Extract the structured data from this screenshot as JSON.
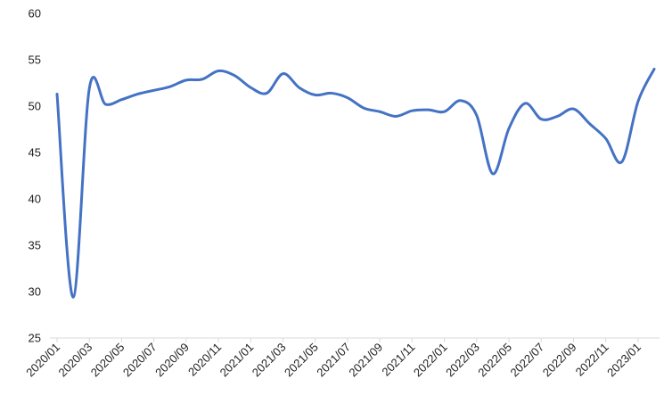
{
  "chart_data": {
    "type": "line",
    "title": "",
    "xlabel": "",
    "ylabel": "",
    "ylim": [
      25,
      60
    ],
    "y_ticks": [
      25,
      30,
      35,
      40,
      45,
      50,
      55,
      60
    ],
    "y_tick_labels": [
      "25",
      "30",
      "35",
      "40",
      "45",
      "50",
      "55",
      "60"
    ],
    "grid": false,
    "legend": "none",
    "x_tick_labels": [
      "2020/01",
      "2020/03",
      "2020/05",
      "2020/07",
      "2020/09",
      "2020/11",
      "2021/01",
      "2021/03",
      "2021/05",
      "2021/07",
      "2021/09",
      "2021/11",
      "2022/01",
      "2022/03",
      "2022/05",
      "2022/07",
      "2022/09",
      "2022/11",
      "2023/01"
    ],
    "series": [
      {
        "color": "#4472C4",
        "x": [
          "2020/01",
          "2020/02",
          "2020/03",
          "2020/04",
          "2020/05",
          "2020/06",
          "2020/07",
          "2020/08",
          "2020/09",
          "2020/10",
          "2020/11",
          "2020/12",
          "2021/01",
          "2021/02",
          "2021/03",
          "2021/04",
          "2021/05",
          "2021/06",
          "2021/07",
          "2021/08",
          "2021/09",
          "2021/10",
          "2021/11",
          "2021/12",
          "2022/01",
          "2022/02",
          "2022/03",
          "2022/04",
          "2022/05",
          "2022/06",
          "2022/07",
          "2022/08",
          "2022/09",
          "2022/10",
          "2022/11",
          "2022/12",
          "2023/01",
          "2023/02"
        ],
        "values": [
          51.3,
          29.4,
          51.9,
          50.2,
          50.7,
          51.3,
          51.7,
          52.1,
          52.8,
          52.9,
          53.8,
          53.3,
          52.0,
          51.4,
          53.5,
          52.0,
          51.2,
          51.4,
          50.9,
          49.8,
          49.4,
          48.9,
          49.5,
          49.6,
          49.4,
          50.6,
          49.0,
          42.7,
          47.6,
          50.3,
          48.6,
          48.9,
          49.7,
          48.1,
          46.5,
          44.0,
          50.5,
          54.0
        ]
      }
    ]
  }
}
